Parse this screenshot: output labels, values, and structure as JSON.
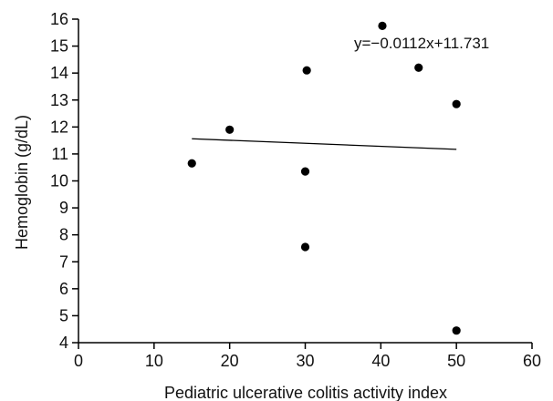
{
  "chart_data": {
    "type": "scatter",
    "xlabel": "Pediatric ulcerative colitis activity index",
    "ylabel": "Hemoglobin (g/dL)",
    "xlim": [
      0,
      60
    ],
    "ylim": [
      4,
      16
    ],
    "xticks": [
      0,
      10,
      20,
      30,
      40,
      50,
      60
    ],
    "yticks": [
      4,
      5,
      6,
      7,
      8,
      9,
      10,
      11,
      12,
      13,
      14,
      15,
      16
    ],
    "points": [
      {
        "x": 15,
        "y": 10.65
      },
      {
        "x": 20,
        "y": 11.9
      },
      {
        "x": 30,
        "y": 7.55
      },
      {
        "x": 30,
        "y": 10.35
      },
      {
        "x": 30.2,
        "y": 14.1
      },
      {
        "x": 40.2,
        "y": 15.75
      },
      {
        "x": 45,
        "y": 14.2
      },
      {
        "x": 50,
        "y": 12.85
      },
      {
        "x": 50,
        "y": 4.45
      }
    ],
    "trendline": {
      "slope": -0.0112,
      "intercept": 11.731,
      "x_range": [
        15,
        50
      ]
    },
    "annotation": "y=−0.0112x+11.731",
    "grid": false,
    "legend": "none",
    "marker_color": "#000000",
    "line_color": "#000000"
  }
}
